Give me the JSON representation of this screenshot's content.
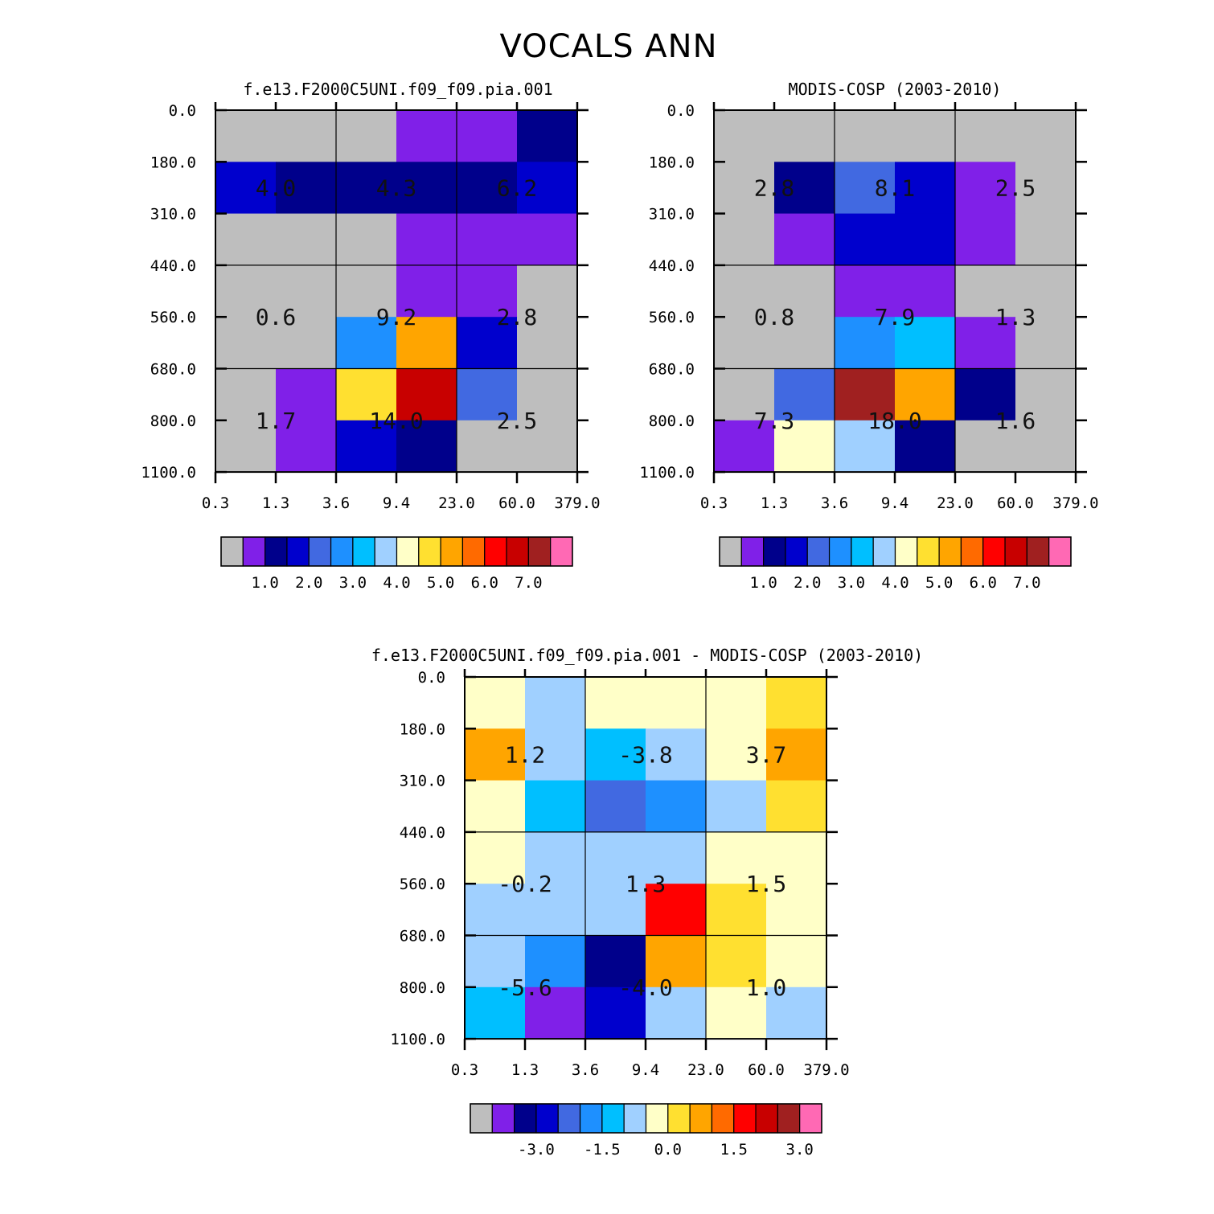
{
  "title": "VOCALS ANN",
  "palette": [
    "#bebebe",
    "#8020e8",
    "#00008b",
    "#0000cd",
    "#4169e1",
    "#1e90ff",
    "#00bfff",
    "#a0d0ff",
    "#ffffc8",
    "#ffe030",
    "#ffa500",
    "#ff6a00",
    "#ff0000",
    "#c80000",
    "#a02020",
    "#ff69b4"
  ],
  "chart_data": [
    {
      "type": "heatmap",
      "title": "f.e13.F2000C5UNI.f09_f09.pia.001",
      "x_ticks": [
        "0.3",
        "1.3",
        "3.6",
        "9.4",
        "23.0",
        "60.0",
        "379.0"
      ],
      "y_ticks": [
        "0.0",
        "180.0",
        "310.0",
        "440.0",
        "560.0",
        "680.0",
        "800.0",
        "1100.0"
      ],
      "cell_levels": [
        [
          0,
          0,
          0,
          1,
          1,
          2
        ],
        [
          3,
          2,
          2,
          2,
          2,
          3
        ],
        [
          0,
          0,
          0,
          1,
          1,
          1
        ],
        [
          0,
          0,
          0,
          1,
          1,
          0
        ],
        [
          0,
          0,
          5,
          10,
          3,
          0
        ],
        [
          0,
          1,
          9,
          13,
          4,
          0
        ],
        [
          0,
          1,
          3,
          2,
          0,
          0
        ]
      ],
      "summary_values": [
        [
          "4.0",
          "4.3",
          "6.2"
        ],
        [
          "0.6",
          "9.2",
          "2.8"
        ],
        [
          "1.7",
          "14.0",
          "2.5"
        ]
      ],
      "colorbar_labels": [
        "1.0",
        "2.0",
        "3.0",
        "4.0",
        "5.0",
        "6.0",
        "7.0"
      ]
    },
    {
      "type": "heatmap",
      "title": "MODIS-COSP (2003-2010)",
      "x_ticks": [
        "0.3",
        "1.3",
        "3.6",
        "9.4",
        "23.0",
        "60.0",
        "379.0"
      ],
      "y_ticks": [
        "0.0",
        "180.0",
        "310.0",
        "440.0",
        "560.0",
        "680.0",
        "800.0",
        "1100.0"
      ],
      "cell_levels": [
        [
          0,
          0,
          0,
          0,
          0,
          0
        ],
        [
          0,
          2,
          4,
          3,
          1,
          0
        ],
        [
          0,
          1,
          3,
          3,
          1,
          0
        ],
        [
          0,
          0,
          1,
          1,
          0,
          0
        ],
        [
          0,
          0,
          5,
          6,
          1,
          0
        ],
        [
          0,
          4,
          14,
          10,
          2,
          0
        ],
        [
          1,
          8,
          7,
          2,
          0,
          0
        ]
      ],
      "summary_values": [
        [
          "2.8",
          "8.1",
          "2.5"
        ],
        [
          "0.8",
          "7.9",
          "1.3"
        ],
        [
          "7.3",
          "18.0",
          "1.6"
        ]
      ],
      "colorbar_labels": [
        "1.0",
        "2.0",
        "3.0",
        "4.0",
        "5.0",
        "6.0",
        "7.0"
      ]
    },
    {
      "type": "heatmap",
      "title": "f.e13.F2000C5UNI.f09_f09.pia.001 - MODIS-COSP (2003-2010)",
      "x_ticks": [
        "0.3",
        "1.3",
        "3.6",
        "9.4",
        "23.0",
        "60.0",
        "379.0"
      ],
      "y_ticks": [
        "0.0",
        "180.0",
        "310.0",
        "440.0",
        "560.0",
        "680.0",
        "800.0",
        "1100.0"
      ],
      "cell_levels": [
        [
          8,
          7,
          8,
          8,
          8,
          9
        ],
        [
          10,
          7,
          6,
          7,
          8,
          10
        ],
        [
          8,
          6,
          4,
          5,
          7,
          9
        ],
        [
          8,
          7,
          7,
          7,
          8,
          8
        ],
        [
          7,
          7,
          7,
          12,
          9,
          8
        ],
        [
          7,
          5,
          2,
          10,
          9,
          8
        ],
        [
          6,
          1,
          3,
          7,
          8,
          7
        ]
      ],
      "summary_values": [
        [
          "1.2",
          "-3.8",
          "3.7"
        ],
        [
          "-0.2",
          "1.3",
          "1.5"
        ],
        [
          "-5.6",
          "-4.0",
          "1.0"
        ]
      ],
      "colorbar_labels": [
        "-3.0",
        "-1.5",
        "0.0",
        "1.5",
        "3.0"
      ]
    }
  ]
}
